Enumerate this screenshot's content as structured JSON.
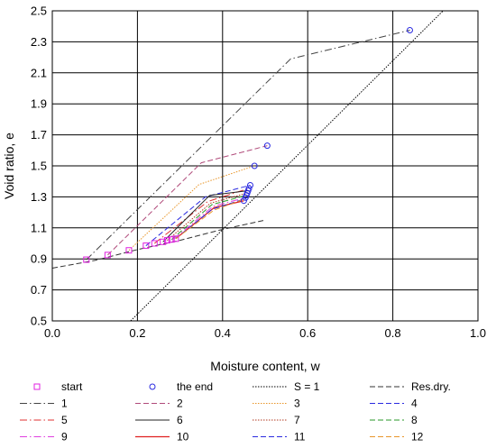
{
  "chart_data": {
    "type": "line",
    "title": "",
    "xlabel": "Moisture content, w",
    "ylabel": "Void ratio, e",
    "xlim": [
      0.0,
      1.0
    ],
    "ylim": [
      0.5,
      2.5
    ],
    "x_ticks": [
      0.0,
      0.2,
      0.4,
      0.6,
      0.8,
      1.0
    ],
    "x_tick_labels": [
      "0.0",
      "0.2",
      "0.4",
      "0.6",
      "0.8",
      "1.0"
    ],
    "y_ticks": [
      0.5,
      0.7,
      0.9,
      1.1,
      1.3,
      1.5,
      1.7,
      1.9,
      2.1,
      2.3,
      2.5
    ],
    "y_tick_labels": [
      "0.5",
      "0.7",
      "0.9",
      "1.1",
      "1.3",
      "1.5",
      "1.7",
      "1.9",
      "2.1",
      "2.3",
      "2.5"
    ],
    "grid": true,
    "legend_position": "bottom",
    "series": [
      {
        "name": "start",
        "kind": "marker-square",
        "color": "#e020e0",
        "points": [
          [
            0.08,
            0.895
          ],
          [
            0.13,
            0.925
          ],
          [
            0.18,
            0.955
          ],
          [
            0.22,
            0.985
          ],
          [
            0.24,
            1.0
          ],
          [
            0.26,
            1.01
          ],
          [
            0.27,
            1.02
          ],
          [
            0.28,
            1.025
          ],
          [
            0.29,
            1.03
          ]
        ]
      },
      {
        "name": "the end",
        "kind": "marker-circle",
        "color": "#2a2ae0",
        "points": [
          [
            0.84,
            2.375
          ],
          [
            0.505,
            1.63
          ],
          [
            0.475,
            1.5
          ],
          [
            0.465,
            1.375
          ],
          [
            0.462,
            1.355
          ],
          [
            0.46,
            1.34
          ],
          [
            0.458,
            1.325
          ],
          [
            0.456,
            1.31
          ],
          [
            0.454,
            1.295
          ],
          [
            0.45,
            1.275
          ]
        ]
      },
      {
        "name": "S = 1",
        "kind": "line",
        "color": "#000000",
        "dash": "1.5,1.5",
        "width": 1,
        "points": [
          [
            0.184,
            0.5
          ],
          [
            0.918,
            2.5
          ]
        ]
      },
      {
        "name": "Res.dry.",
        "kind": "line",
        "color": "#333333",
        "dash": "6,3",
        "width": 1,
        "points": [
          [
            0.0,
            0.84
          ],
          [
            0.1,
            0.89
          ],
          [
            0.2,
            0.96
          ],
          [
            0.3,
            1.02
          ],
          [
            0.4,
            1.09
          ],
          [
            0.5,
            1.15
          ]
        ]
      },
      {
        "name": "1",
        "kind": "line",
        "color": "#444444",
        "dash": "8,3,1.5,3",
        "width": 1,
        "points": [
          [
            0.08,
            0.895
          ],
          [
            0.56,
            2.19
          ],
          [
            0.84,
            2.375
          ]
        ]
      },
      {
        "name": "2",
        "kind": "line",
        "color": "#b04a7a",
        "dash": "6,3",
        "width": 1,
        "points": [
          [
            0.13,
            0.925
          ],
          [
            0.35,
            1.52
          ],
          [
            0.505,
            1.63
          ]
        ]
      },
      {
        "name": "3",
        "kind": "line",
        "color": "#e8962a",
        "dash": "1.5,1.5",
        "width": 1,
        "points": [
          [
            0.18,
            0.955
          ],
          [
            0.345,
            1.38
          ],
          [
            0.475,
            1.5
          ]
        ]
      },
      {
        "name": "4",
        "kind": "line",
        "color": "#2a2ae0",
        "dash": "6,3",
        "width": 1,
        "points": [
          [
            0.22,
            0.985
          ],
          [
            0.36,
            1.3
          ],
          [
            0.465,
            1.375
          ]
        ]
      },
      {
        "name": "5",
        "kind": "line",
        "color": "#e03030",
        "dash": "8,3,1.5,3",
        "width": 1,
        "points": [
          [
            0.24,
            1.0
          ],
          [
            0.365,
            1.27
          ],
          [
            0.462,
            1.355
          ]
        ]
      },
      {
        "name": "6",
        "kind": "line",
        "color": "#222222",
        "dash": "",
        "width": 1,
        "points": [
          [
            0.26,
            1.01
          ],
          [
            0.37,
            1.31
          ],
          [
            0.46,
            1.34
          ]
        ]
      },
      {
        "name": "7",
        "kind": "line",
        "color": "#b03a20",
        "dash": "1.5,1.5",
        "width": 1,
        "points": [
          [
            0.27,
            1.02
          ],
          [
            0.372,
            1.26
          ],
          [
            0.458,
            1.325
          ]
        ]
      },
      {
        "name": "8",
        "kind": "line",
        "color": "#2a9a2a",
        "dash": "6,3",
        "width": 1,
        "points": [
          [
            0.28,
            1.025
          ],
          [
            0.375,
            1.25
          ],
          [
            0.456,
            1.31
          ]
        ]
      },
      {
        "name": "9",
        "kind": "line",
        "color": "#e040e0",
        "dash": "8,3,1.5,3",
        "width": 1,
        "points": [
          [
            0.285,
            1.028
          ],
          [
            0.378,
            1.24
          ],
          [
            0.454,
            1.295
          ]
        ]
      },
      {
        "name": "10",
        "kind": "line",
        "color": "#e02020",
        "dash": "",
        "width": 1.3,
        "points": [
          [
            0.29,
            1.03
          ],
          [
            0.38,
            1.23
          ],
          [
            0.45,
            1.275
          ]
        ]
      },
      {
        "name": "11",
        "kind": "line",
        "color": "#2a2ae0",
        "dash": "6,3",
        "width": 1,
        "points": [
          [
            0.29,
            1.03
          ],
          [
            0.375,
            1.22
          ],
          [
            0.455,
            1.29
          ]
        ]
      },
      {
        "name": "12",
        "kind": "line",
        "color": "#e8962a",
        "dash": "6,3",
        "width": 1,
        "points": [
          [
            0.29,
            1.03
          ],
          [
            0.38,
            1.215
          ],
          [
            0.45,
            1.285
          ]
        ]
      }
    ]
  }
}
